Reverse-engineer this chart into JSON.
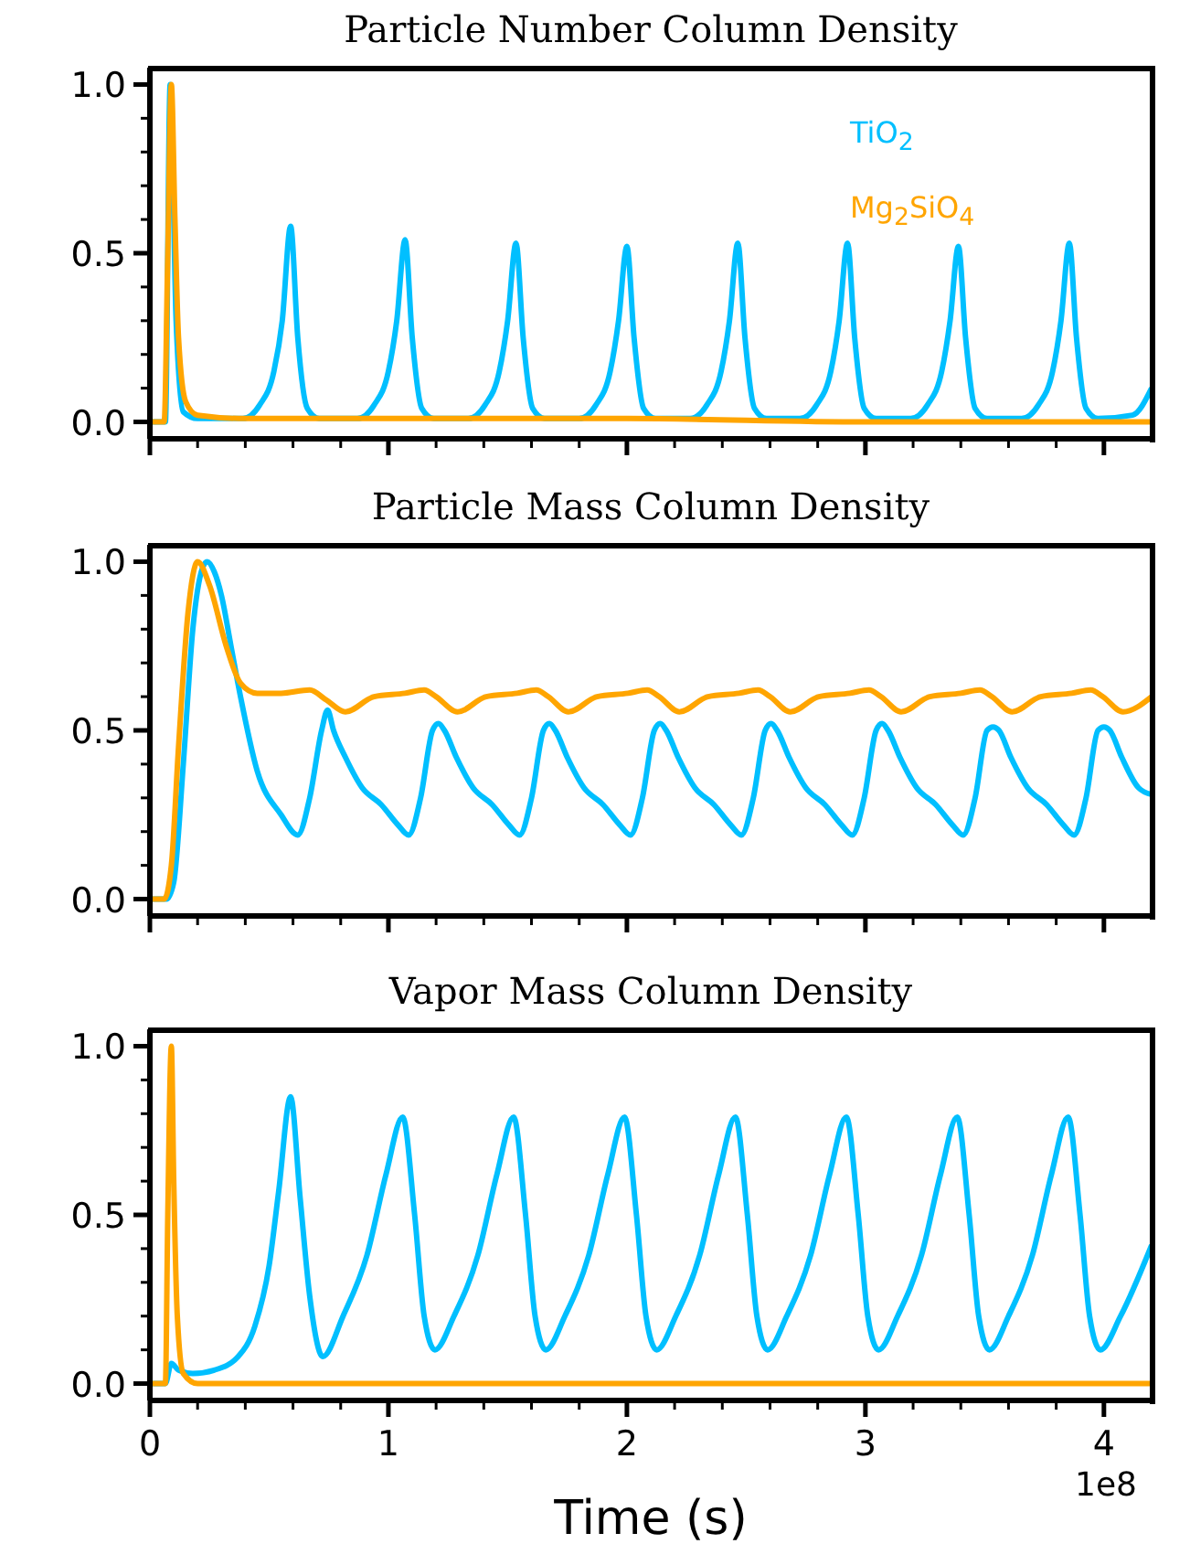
{
  "chart_data": [
    {
      "type": "line",
      "title": "Particle Number Column Density",
      "legend": "top right",
      "tick_labels": "y",
      "xlim": [
        0,
        4.2
      ],
      "ylim": [
        -0.05,
        1.05
      ],
      "xticks": [
        0,
        {
          "value": 0.2,
          "label": null
        },
        {
          "value": 0.4,
          "label": null
        },
        {
          "value": 0.6,
          "label": null
        },
        {
          "value": 0.8,
          "label": null
        },
        1,
        {
          "value": 1.2,
          "label": null
        },
        {
          "value": 1.4,
          "label": null
        },
        {
          "value": 1.6,
          "label": null
        },
        {
          "value": 1.8,
          "label": null
        },
        2,
        {
          "value": 2.2,
          "label": null
        },
        {
          "value": 2.4,
          "label": null
        },
        {
          "value": 2.6,
          "label": null
        },
        {
          "value": 2.8,
          "label": null
        },
        3,
        {
          "value": 3.2,
          "label": null
        },
        {
          "value": 3.4,
          "label": null
        },
        {
          "value": 3.6,
          "label": null
        },
        {
          "value": 3.8,
          "label": null
        },
        4
      ],
      "yticks": [
        {
          "value": 0,
          "label": "0.0"
        },
        {
          "value": 0.1,
          "label": null
        },
        {
          "value": 0.2,
          "label": null
        },
        {
          "value": 0.3,
          "label": null
        },
        {
          "value": 0.4,
          "label": null
        },
        {
          "value": 0.5,
          "label": "0.5"
        },
        {
          "value": 0.6,
          "label": null
        },
        {
          "value": 0.7,
          "label": null
        },
        {
          "value": 0.8,
          "label": null
        },
        {
          "value": 0.9,
          "label": null
        },
        {
          "value": 1,
          "label": "1.0"
        }
      ],
      "series": [
        {
          "name": "TiO$_{2}$",
          "color": "#00bfff",
          "x": [
            0,
            0.065,
            0.085,
            0.11,
            0.14,
            0.2,
            0.39,
            0.46,
            0.52,
            0.555,
            0.59,
            0.62,
            0.66,
            0.71,
            0.87,
            0.94,
            1.0,
            1.035,
            1.07,
            1.1,
            1.14,
            1.19,
            1.335,
            1.405,
            1.465,
            1.5,
            1.535,
            1.565,
            1.605,
            1.655,
            1.8,
            1.87,
            1.93,
            1.965,
            2.0,
            2.03,
            2.07,
            2.12,
            2.265,
            2.335,
            2.395,
            2.43,
            2.465,
            2.495,
            2.535,
            2.585,
            2.725,
            2.795,
            2.855,
            2.89,
            2.925,
            2.955,
            2.995,
            3.045,
            3.19,
            3.26,
            3.32,
            3.355,
            3.39,
            3.42,
            3.46,
            3.51,
            3.655,
            3.725,
            3.785,
            3.82,
            3.855,
            3.885,
            3.925,
            3.975,
            4.12,
            4.2
          ],
          "values": [
            0,
            0,
            1.0,
            0.3,
            0.03,
            0.01,
            0.01,
            0.05,
            0.15,
            0.3,
            0.58,
            0.25,
            0.04,
            0.01,
            0.01,
            0.05,
            0.15,
            0.3,
            0.54,
            0.25,
            0.04,
            0.01,
            0.01,
            0.05,
            0.15,
            0.3,
            0.53,
            0.25,
            0.04,
            0.01,
            0.01,
            0.05,
            0.15,
            0.3,
            0.52,
            0.25,
            0.04,
            0.01,
            0.01,
            0.05,
            0.15,
            0.3,
            0.53,
            0.25,
            0.04,
            0.01,
            0.01,
            0.05,
            0.15,
            0.3,
            0.53,
            0.25,
            0.04,
            0.01,
            0.01,
            0.05,
            0.15,
            0.3,
            0.52,
            0.25,
            0.04,
            0.01,
            0.01,
            0.05,
            0.15,
            0.3,
            0.53,
            0.25,
            0.04,
            0.01,
            0.02,
            0.1
          ]
        },
        {
          "name": "Mg$_{2}$SiO$_{4}$",
          "color": "#ffa500",
          "x": [
            0,
            0.06,
            0.075,
            0.09,
            0.105,
            0.12,
            0.15,
            0.2,
            0.4,
            1.0,
            2.0,
            3.0,
            4.2
          ],
          "values": [
            0,
            0,
            0.5,
            1.0,
            0.6,
            0.25,
            0.06,
            0.02,
            0.01,
            0.01,
            0.01,
            0,
            0
          ]
        }
      ]
    },
    {
      "type": "line",
      "title": "Particle Mass Column Density",
      "tick_labels": "y",
      "xlim": [
        0,
        4.2
      ],
      "ylim": [
        -0.05,
        1.05
      ],
      "xticks": [
        0,
        {
          "value": 0.2,
          "label": null
        },
        {
          "value": 0.4,
          "label": null
        },
        {
          "value": 0.6,
          "label": null
        },
        {
          "value": 0.8,
          "label": null
        },
        1,
        {
          "value": 1.2,
          "label": null
        },
        {
          "value": 1.4,
          "label": null
        },
        {
          "value": 1.6,
          "label": null
        },
        {
          "value": 1.8,
          "label": null
        },
        2,
        {
          "value": 2.2,
          "label": null
        },
        {
          "value": 2.4,
          "label": null
        },
        {
          "value": 2.6,
          "label": null
        },
        {
          "value": 2.8,
          "label": null
        },
        3,
        {
          "value": 3.2,
          "label": null
        },
        {
          "value": 3.4,
          "label": null
        },
        {
          "value": 3.6,
          "label": null
        },
        {
          "value": 3.8,
          "label": null
        },
        4
      ],
      "yticks": [
        {
          "value": 0,
          "label": "0.0"
        },
        {
          "value": 0.1,
          "label": null
        },
        {
          "value": 0.2,
          "label": null
        },
        {
          "value": 0.3,
          "label": null
        },
        {
          "value": 0.4,
          "label": null
        },
        {
          "value": 0.5,
          "label": "0.5"
        },
        {
          "value": 0.6,
          "label": null
        },
        {
          "value": 0.7,
          "label": null
        },
        {
          "value": 0.8,
          "label": null
        },
        {
          "value": 0.9,
          "label": null
        },
        {
          "value": 1,
          "label": "1.0"
        }
      ],
      "series": [
        {
          "color": "#00bfff",
          "x": [
            0,
            0.07,
            0.1,
            0.14,
            0.18,
            0.22,
            0.24,
            0.27,
            0.3,
            0.34,
            0.38,
            0.45,
            0.55,
            0.62,
            0.67,
            0.72,
            0.745,
            0.77,
            0.82,
            0.89,
            0.97,
            1.04,
            1.085,
            1.135,
            1.185,
            1.21,
            1.235,
            1.285,
            1.355,
            1.435,
            1.505,
            1.55,
            1.6,
            1.65,
            1.675,
            1.7,
            1.75,
            1.82,
            1.9,
            1.97,
            2.015,
            2.065,
            2.115,
            2.14,
            2.165,
            2.215,
            2.285,
            2.365,
            2.435,
            2.48,
            2.53,
            2.58,
            2.605,
            2.63,
            2.68,
            2.75,
            2.83,
            2.9,
            2.945,
            2.995,
            3.045,
            3.07,
            3.095,
            3.145,
            3.215,
            3.295,
            3.365,
            3.41,
            3.46,
            3.51,
            3.535,
            3.56,
            3.61,
            3.68,
            3.76,
            3.83,
            3.875,
            3.925,
            3.975,
            4.0,
            4.025,
            4.075,
            4.145,
            4.2
          ],
          "values": [
            0,
            0,
            0.05,
            0.4,
            0.8,
            0.98,
            1.0,
            0.97,
            0.9,
            0.75,
            0.6,
            0.38,
            0.25,
            0.19,
            0.3,
            0.5,
            0.56,
            0.5,
            0.42,
            0.33,
            0.28,
            0.22,
            0.19,
            0.3,
            0.5,
            0.52,
            0.5,
            0.42,
            0.33,
            0.28,
            0.22,
            0.19,
            0.3,
            0.5,
            0.52,
            0.5,
            0.42,
            0.33,
            0.28,
            0.22,
            0.19,
            0.3,
            0.5,
            0.52,
            0.5,
            0.42,
            0.33,
            0.28,
            0.22,
            0.19,
            0.3,
            0.5,
            0.52,
            0.5,
            0.42,
            0.33,
            0.28,
            0.22,
            0.19,
            0.3,
            0.5,
            0.52,
            0.5,
            0.42,
            0.33,
            0.28,
            0.22,
            0.19,
            0.3,
            0.5,
            0.51,
            0.5,
            0.42,
            0.33,
            0.28,
            0.22,
            0.19,
            0.3,
            0.5,
            0.51,
            0.5,
            0.42,
            0.33,
            0.31
          ]
        },
        {
          "color": "#ffa500",
          "x": [
            0,
            0.06,
            0.09,
            0.12,
            0.16,
            0.2,
            0.25,
            0.32,
            0.38,
            0.45,
            0.55,
            0.67,
            0.74,
            0.82,
            0.94,
            1.07,
            1.15,
            1.2,
            1.29,
            1.41,
            1.54,
            1.62,
            1.67,
            1.755,
            1.875,
            2.005,
            2.085,
            2.135,
            2.22,
            2.34,
            2.47,
            2.55,
            2.6,
            2.685,
            2.805,
            2.935,
            3.015,
            3.065,
            3.15,
            3.27,
            3.4,
            3.48,
            3.53,
            3.615,
            3.735,
            3.865,
            3.945,
            3.995,
            4.08,
            4.2
          ],
          "values": [
            0,
            0,
            0.1,
            0.45,
            0.85,
            1.0,
            0.93,
            0.75,
            0.64,
            0.61,
            0.61,
            0.62,
            0.59,
            0.555,
            0.6,
            0.61,
            0.62,
            0.6,
            0.555,
            0.6,
            0.61,
            0.62,
            0.6,
            0.555,
            0.6,
            0.61,
            0.62,
            0.6,
            0.555,
            0.6,
            0.61,
            0.62,
            0.6,
            0.555,
            0.6,
            0.61,
            0.62,
            0.6,
            0.555,
            0.6,
            0.61,
            0.62,
            0.6,
            0.555,
            0.6,
            0.61,
            0.62,
            0.6,
            0.555,
            0.6
          ]
        }
      ]
    },
    {
      "type": "line",
      "title": "Vapor Mass Column Density",
      "xlabel": "Time (s)",
      "annotations": [
        "1e8"
      ],
      "xlim": [
        0,
        4.2
      ],
      "ylim": [
        -0.05,
        1.05
      ],
      "xticks": [
        0,
        {
          "value": 0.2,
          "label": null
        },
        {
          "value": 0.4,
          "label": null
        },
        {
          "value": 0.6,
          "label": null
        },
        {
          "value": 0.8,
          "label": null
        },
        1,
        {
          "value": 1.2,
          "label": null
        },
        {
          "value": 1.4,
          "label": null
        },
        {
          "value": 1.6,
          "label": null
        },
        {
          "value": 1.8,
          "label": null
        },
        2,
        {
          "value": 2.2,
          "label": null
        },
        {
          "value": 2.4,
          "label": null
        },
        {
          "value": 2.6,
          "label": null
        },
        {
          "value": 2.8,
          "label": null
        },
        3,
        {
          "value": 3.2,
          "label": null
        },
        {
          "value": 3.4,
          "label": null
        },
        {
          "value": 3.6,
          "label": null
        },
        {
          "value": 3.8,
          "label": null
        },
        4
      ],
      "yticks": [
        {
          "value": 0,
          "label": "0.0"
        },
        {
          "value": 0.1,
          "label": null
        },
        {
          "value": 0.2,
          "label": null
        },
        {
          "value": 0.3,
          "label": null
        },
        {
          "value": 0.4,
          "label": null
        },
        {
          "value": 0.5,
          "label": "0.5"
        },
        {
          "value": 0.6,
          "label": null
        },
        {
          "value": 0.7,
          "label": null
        },
        {
          "value": 0.8,
          "label": null
        },
        {
          "value": 0.9,
          "label": null
        },
        {
          "value": 1,
          "label": "1.0"
        }
      ],
      "series": [
        {
          "color": "#00bfff",
          "x": [
            0,
            0.065,
            0.09,
            0.12,
            0.18,
            0.27,
            0.37,
            0.44,
            0.5,
            0.54,
            0.59,
            0.63,
            0.67,
            0.725,
            0.81,
            0.91,
            0.99,
            1.06,
            1.11,
            1.15,
            1.195,
            1.275,
            1.375,
            1.455,
            1.525,
            1.575,
            1.615,
            1.66,
            1.74,
            1.84,
            1.92,
            1.99,
            2.04,
            2.08,
            2.125,
            2.205,
            2.305,
            2.385,
            2.455,
            2.505,
            2.545,
            2.59,
            2.67,
            2.77,
            2.85,
            2.92,
            2.97,
            3.01,
            3.055,
            3.135,
            3.235,
            3.315,
            3.385,
            3.435,
            3.475,
            3.52,
            3.6,
            3.7,
            3.78,
            3.85,
            3.9,
            3.94,
            3.985,
            4.07,
            4.2
          ],
          "values": [
            0,
            0,
            0.06,
            0.04,
            0.03,
            0.04,
            0.08,
            0.17,
            0.35,
            0.57,
            0.85,
            0.55,
            0.26,
            0.08,
            0.2,
            0.38,
            0.62,
            0.79,
            0.5,
            0.2,
            0.1,
            0.2,
            0.38,
            0.62,
            0.79,
            0.5,
            0.2,
            0.1,
            0.2,
            0.38,
            0.62,
            0.79,
            0.5,
            0.2,
            0.1,
            0.2,
            0.38,
            0.62,
            0.79,
            0.5,
            0.2,
            0.1,
            0.2,
            0.38,
            0.62,
            0.79,
            0.5,
            0.2,
            0.1,
            0.2,
            0.38,
            0.62,
            0.79,
            0.5,
            0.2,
            0.1,
            0.2,
            0.38,
            0.62,
            0.79,
            0.5,
            0.2,
            0.1,
            0.2,
            0.41
          ]
        },
        {
          "color": "#ffa500",
          "x": [
            0,
            0.065,
            0.075,
            0.09,
            0.1,
            0.115,
            0.14,
            0.2,
            4.2
          ],
          "values": [
            0,
            0,
            0.5,
            1.0,
            0.6,
            0.2,
            0.03,
            0,
            0
          ]
        }
      ]
    }
  ]
}
